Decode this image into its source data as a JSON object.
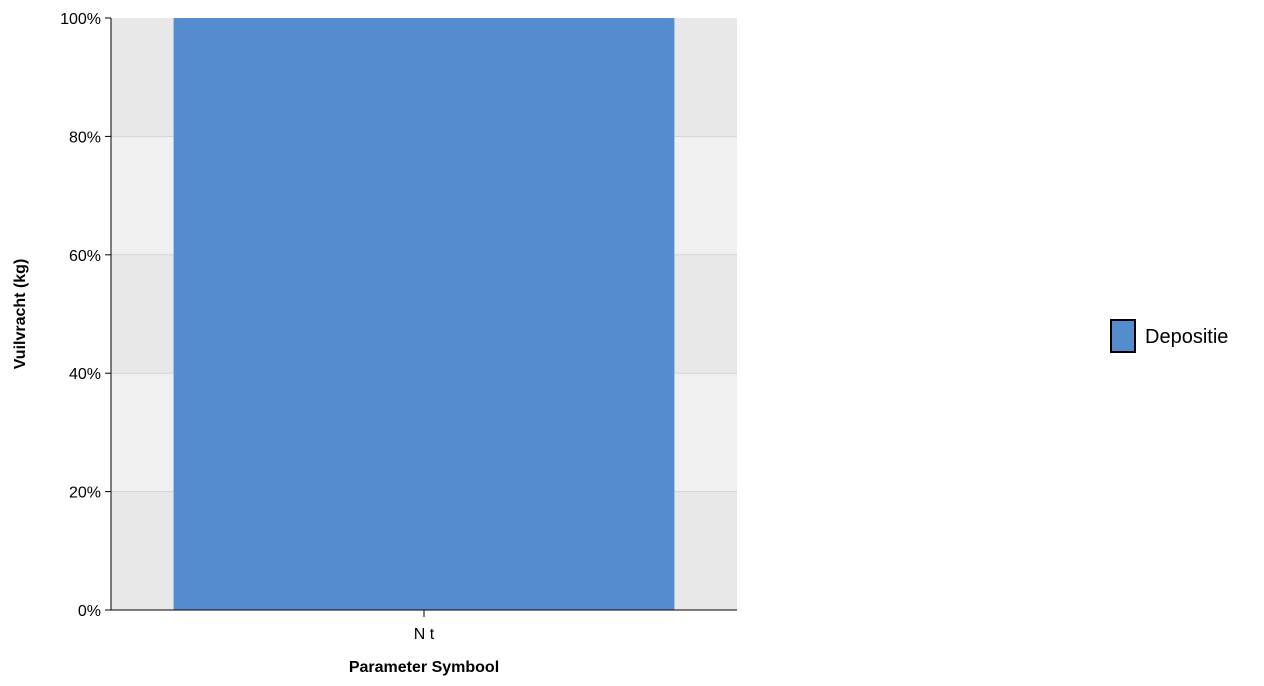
{
  "chart_data": {
    "type": "bar",
    "stacked": true,
    "percent_scale": true,
    "categories": [
      "N t"
    ],
    "series": [
      {
        "name": "Depositie",
        "values": [
          100
        ],
        "color": "#548cce"
      }
    ],
    "xlabel": "Parameter Symbool",
    "ylabel": "Vuilvracht (kg)",
    "ylim": [
      0,
      100
    ],
    "yticks": [
      "0%",
      "20%",
      "40%",
      "60%",
      "80%",
      "100%"
    ],
    "grid": true,
    "legend_position": "right"
  }
}
